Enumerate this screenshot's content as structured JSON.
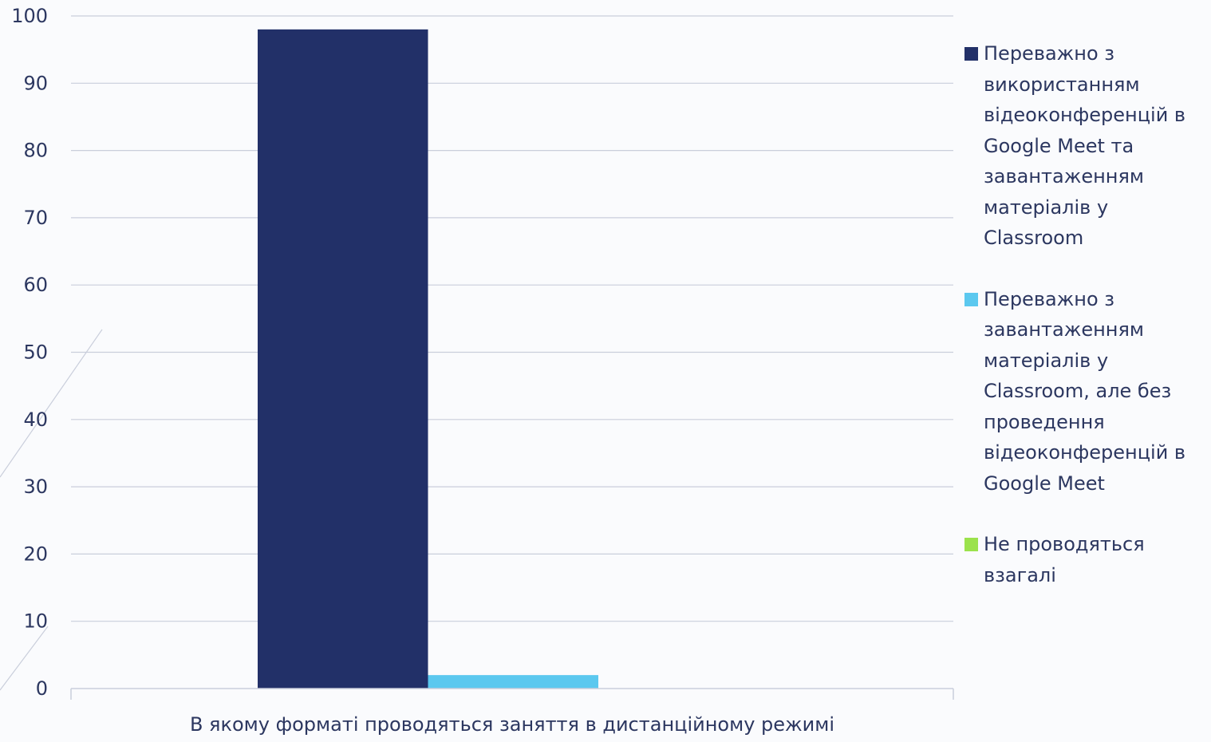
{
  "chart_data": {
    "type": "bar",
    "title": "",
    "xlabel": "",
    "ylabel": "",
    "categories": [
      "В якому форматі проводяться заняття в дистанційному режимі"
    ],
    "series": [
      {
        "name": "Переважно з використанням відеоконференцій в Google Meet та завантаженням матеріалів у Classroom",
        "values": [
          98
        ],
        "color": "#223068"
      },
      {
        "name": "Переважно з завантаженням матеріалів у Classroom, але без проведення відеоконференцій в Google Meet",
        "values": [
          2
        ],
        "color": "#5bc8ef"
      },
      {
        "name": "Не проводяться взагалі",
        "values": [
          0
        ],
        "color": "#9be24c"
      }
    ],
    "ylim": [
      0,
      100
    ],
    "yticks": [
      "0",
      "10",
      "20",
      "30",
      "40",
      "50",
      "60",
      "70",
      "80",
      "90",
      "100"
    ],
    "grid": true,
    "legend_position": "right"
  }
}
